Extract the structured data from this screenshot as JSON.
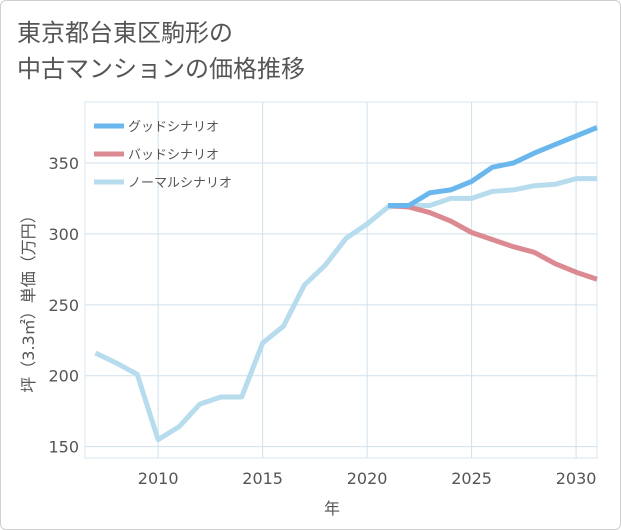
{
  "title_lines": [
    "東京都台東区駒形の",
    "中古マンションの価格推移"
  ],
  "chart_data": {
    "type": "line",
    "xlabel": "年",
    "ylabel": "坪（3.3㎡）単価（万円）",
    "xlim": [
      2006.5,
      2031
    ],
    "ylim": [
      142,
      393
    ],
    "x_ticks": [
      2010,
      2015,
      2020,
      2025,
      2030
    ],
    "y_ticks": [
      150,
      200,
      250,
      300,
      350
    ],
    "grid": true,
    "legend_position": "top-left",
    "series": [
      {
        "name": "グッドシナリオ",
        "color": "#6ab7ee",
        "x": [
          2021,
          2022,
          2023,
          2024,
          2025,
          2026,
          2027,
          2028,
          2029,
          2030,
          2031
        ],
        "y": [
          320,
          320,
          329,
          331,
          337,
          347,
          350,
          357,
          363,
          369,
          375
        ]
      },
      {
        "name": "バッドシナリオ",
        "color": "#dc8a92",
        "x": [
          2021,
          2022,
          2023,
          2024,
          2025,
          2026,
          2027,
          2028,
          2029,
          2030,
          2031
        ],
        "y": [
          320,
          319,
          315,
          309,
          301,
          296,
          291,
          287,
          279,
          273,
          268
        ]
      },
      {
        "name": "ノーマルシナリオ",
        "color": "#b7dcee",
        "x": [
          2007,
          2008,
          2009,
          2010,
          2011,
          2012,
          2013,
          2014,
          2015,
          2016,
          2017,
          2018,
          2019,
          2020,
          2021,
          2022,
          2023,
          2024,
          2025,
          2026,
          2027,
          2028,
          2029,
          2030,
          2031
        ],
        "y": [
          216,
          209,
          201,
          155,
          164,
          180,
          185,
          185,
          223,
          235,
          264,
          278,
          297,
          307,
          319,
          320,
          320,
          325,
          325,
          330,
          331,
          334,
          335,
          339,
          339
        ]
      }
    ]
  }
}
